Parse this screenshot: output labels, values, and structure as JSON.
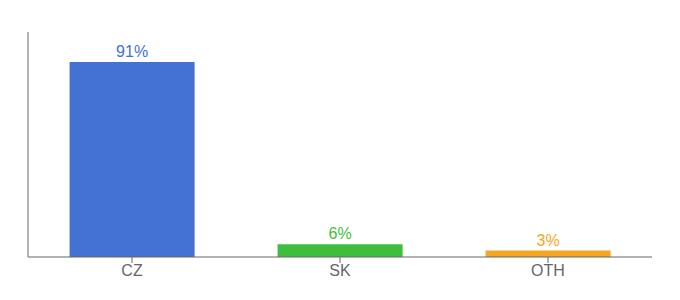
{
  "chart_data": {
    "type": "bar",
    "categories": [
      "CZ",
      "SK",
      "OTH"
    ],
    "values": [
      91,
      6,
      3
    ],
    "value_labels": [
      "91%",
      "6%",
      "3%"
    ],
    "colors": [
      "#4371d4",
      "#3dbf3d",
      "#f5a623"
    ],
    "ylim": [
      0,
      105
    ],
    "yticks": [],
    "data_labels": true,
    "tick_labels": "x",
    "grid": false
  }
}
